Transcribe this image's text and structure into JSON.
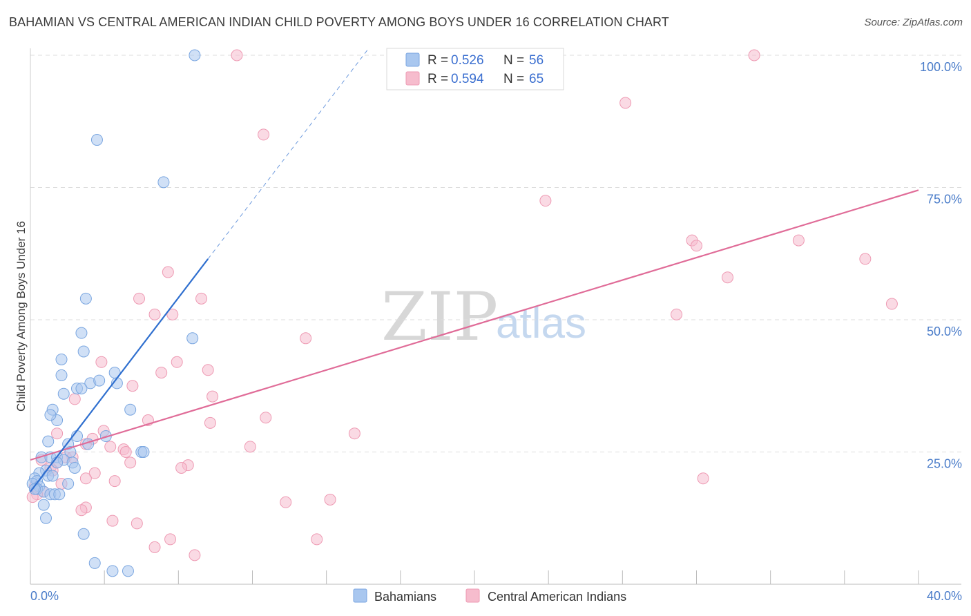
{
  "title": "BAHAMIAN VS CENTRAL AMERICAN INDIAN CHILD POVERTY AMONG BOYS UNDER 16 CORRELATION CHART",
  "source": "Source: ZipAtlas.com",
  "watermark": {
    "zip": "ZIP",
    "atlas": "atlas"
  },
  "colors": {
    "blue_fill": "#a9c7ef",
    "blue_stroke": "#7aa6e0",
    "blue_line": "#2f6fcf",
    "pink_fill": "#f6bccd",
    "pink_stroke": "#ee9ab3",
    "pink_line": "#e06c98",
    "grid": "#dddddd",
    "tick_text": "#4a7cc9"
  },
  "legend_top": {
    "rows": [
      {
        "r_label": "R =",
        "r_value": "0.526",
        "n_label": "N =",
        "n_value": "56"
      },
      {
        "r_label": "R =",
        "r_value": "0.594",
        "n_label": "N =",
        "n_value": "65"
      }
    ]
  },
  "chart_data": {
    "type": "scatter",
    "title": "BAHAMIAN VS CENTRAL AMERICAN INDIAN CHILD POVERTY AMONG BOYS UNDER 16 CORRELATION CHART",
    "xlabel": "",
    "ylabel": "Child Poverty Among Boys Under 16",
    "xlim": [
      0,
      40
    ],
    "ylim": [
      0,
      100
    ],
    "x_tick_labels": [
      "0.0%",
      "40.0%"
    ],
    "y_tick_labels": [
      "25.0%",
      "50.0%",
      "75.0%",
      "100.0%"
    ],
    "y_tick_values": [
      25,
      50,
      75,
      100
    ],
    "grid": true,
    "legend_position": "top-center",
    "series": [
      {
        "name": "Bahamians",
        "r": 0.526,
        "n": 56,
        "trend": {
          "x0": 0,
          "y0": 17.5,
          "x1": 8.0,
          "y1": 61.5,
          "dash_to_x": 15.2
        },
        "points": [
          [
            7.4,
            100
          ],
          [
            3.0,
            84
          ],
          [
            6.0,
            76
          ],
          [
            2.5,
            54
          ],
          [
            7.3,
            46.5
          ],
          [
            2.3,
            47.5
          ],
          [
            2.4,
            44
          ],
          [
            1.4,
            42.5
          ],
          [
            1.4,
            39.5
          ],
          [
            3.8,
            40
          ],
          [
            2.1,
            37
          ],
          [
            2.7,
            38
          ],
          [
            3.1,
            38.5
          ],
          [
            3.9,
            38
          ],
          [
            1.5,
            36
          ],
          [
            2.3,
            37
          ],
          [
            1.0,
            33
          ],
          [
            4.5,
            33
          ],
          [
            1.2,
            31
          ],
          [
            0.9,
            32
          ],
          [
            3.4,
            28
          ],
          [
            2.1,
            28
          ],
          [
            0.8,
            27
          ],
          [
            2.6,
            26.5
          ],
          [
            1.7,
            26.5
          ],
          [
            1.8,
            25
          ],
          [
            5.0,
            25
          ],
          [
            5.1,
            25
          ],
          [
            0.5,
            24
          ],
          [
            0.9,
            24
          ],
          [
            1.2,
            24
          ],
          [
            1.5,
            23.5
          ],
          [
            1.2,
            23
          ],
          [
            1.9,
            23
          ],
          [
            2.0,
            22
          ],
          [
            0.7,
            21.5
          ],
          [
            0.4,
            21
          ],
          [
            0.8,
            20.5
          ],
          [
            1.0,
            20.5
          ],
          [
            0.2,
            20
          ],
          [
            0.3,
            19.5
          ],
          [
            0.1,
            19
          ],
          [
            0.4,
            18.5
          ],
          [
            1.7,
            19
          ],
          [
            0.3,
            18
          ],
          [
            0.6,
            17.5
          ],
          [
            0.9,
            17
          ],
          [
            1.1,
            17
          ],
          [
            1.3,
            17
          ],
          [
            0.2,
            18
          ],
          [
            0.6,
            15
          ],
          [
            0.7,
            12.5
          ],
          [
            2.4,
            9.5
          ],
          [
            2.9,
            4
          ],
          [
            3.7,
            2.5
          ],
          [
            4.4,
            2.5
          ]
        ]
      },
      {
        "name": "Central American Indians",
        "r": 0.594,
        "n": 65,
        "trend": {
          "x0": 0,
          "y0": 23.5,
          "x1": 40,
          "y1": 74.5
        },
        "points": [
          [
            9.3,
            100
          ],
          [
            32.6,
            100
          ],
          [
            26.8,
            91
          ],
          [
            10.5,
            85
          ],
          [
            23.2,
            72.5
          ],
          [
            37.6,
            61.5
          ],
          [
            34.6,
            65
          ],
          [
            29.8,
            65
          ],
          [
            30.0,
            64
          ],
          [
            31.4,
            58
          ],
          [
            6.2,
            59
          ],
          [
            38.8,
            53
          ],
          [
            29.1,
            51
          ],
          [
            4.9,
            54
          ],
          [
            7.7,
            54
          ],
          [
            5.6,
            51
          ],
          [
            6.4,
            51
          ],
          [
            12.4,
            46.5
          ],
          [
            3.2,
            42
          ],
          [
            6.6,
            42
          ],
          [
            8.0,
            40.5
          ],
          [
            5.9,
            40
          ],
          [
            4.6,
            37.5
          ],
          [
            8.2,
            35.5
          ],
          [
            2.0,
            35
          ],
          [
            10.6,
            31.5
          ],
          [
            5.3,
            31
          ],
          [
            8.1,
            30.5
          ],
          [
            3.3,
            29
          ],
          [
            14.6,
            28.5
          ],
          [
            1.2,
            28.5
          ],
          [
            3.6,
            26
          ],
          [
            9.9,
            26
          ],
          [
            2.8,
            27.5
          ],
          [
            2.5,
            26.5
          ],
          [
            4.2,
            25.5
          ],
          [
            4.3,
            25
          ],
          [
            1.6,
            24
          ],
          [
            1.9,
            24
          ],
          [
            1.2,
            23
          ],
          [
            4.5,
            23
          ],
          [
            7.1,
            22.5
          ],
          [
            6.8,
            22
          ],
          [
            0.9,
            22
          ],
          [
            2.9,
            21
          ],
          [
            2.5,
            20
          ],
          [
            3.8,
            19.5
          ],
          [
            30.3,
            20
          ],
          [
            1.4,
            19
          ],
          [
            0.6,
            17.5
          ],
          [
            0.3,
            17
          ],
          [
            11.5,
            15.5
          ],
          [
            13.5,
            16
          ],
          [
            2.5,
            14.5
          ],
          [
            2.3,
            14
          ],
          [
            3.7,
            12
          ],
          [
            4.8,
            11.5
          ],
          [
            6.3,
            8.5
          ],
          [
            12.9,
            8.5
          ],
          [
            5.6,
            7
          ],
          [
            7.4,
            5.5
          ],
          [
            0.1,
            16.5
          ],
          [
            0.2,
            18.5
          ],
          [
            1.0,
            21.5
          ],
          [
            0.5,
            23.5
          ]
        ]
      }
    ]
  }
}
